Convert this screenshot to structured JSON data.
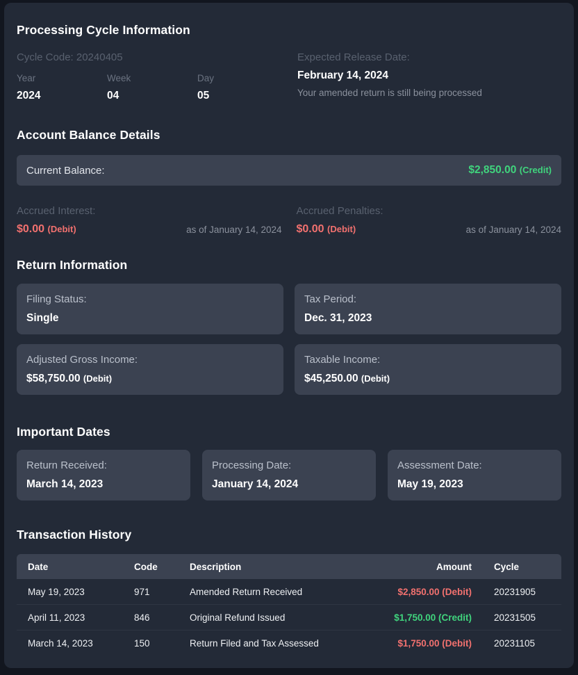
{
  "colors": {
    "outer_background": "#12161f",
    "panel_background": "#232a37",
    "card_background": "#3b4251",
    "credit_green": "#40d47d",
    "debit_red": "#f2716f"
  },
  "processing_cycle": {
    "title": "Processing Cycle Information",
    "cycle_code_line": "Cycle Code: 20240405",
    "fields": [
      {
        "label": "Year",
        "value": "2024"
      },
      {
        "label": "Week",
        "value": "04"
      },
      {
        "label": "Day",
        "value": "05"
      }
    ],
    "release": {
      "label": "Expected Release Date:",
      "value": "February 14, 2024",
      "note": "Your amended return is still being processed"
    }
  },
  "account_balance": {
    "title": "Account Balance Details",
    "current_balance": {
      "label": "Current Balance:",
      "amount": "$2,850.00",
      "suffix": "(Credit)",
      "type": "credit"
    },
    "accruals": [
      {
        "label": "Accrued Interest:",
        "amount": "$0.00",
        "suffix": "(Debit)",
        "type": "debit",
        "as_of": "as of January 14, 2024"
      },
      {
        "label": "Accrued Penalties:",
        "amount": "$0.00",
        "suffix": "(Debit)",
        "type": "debit",
        "as_of": "as of January 14, 2024"
      }
    ]
  },
  "return_information": {
    "title": "Return Information",
    "cards": [
      {
        "label": "Filing Status:",
        "value": "Single"
      },
      {
        "label": "Tax Period:",
        "value": "Dec. 31, 2023"
      },
      {
        "label": "Adjusted Gross Income:",
        "amount": "$58,750.00",
        "suffix": "(Debit)",
        "type": "debit"
      },
      {
        "label": "Taxable Income:",
        "amount": "$45,250.00",
        "suffix": "(Debit)",
        "type": "debit"
      }
    ]
  },
  "important_dates": {
    "title": "Important Dates",
    "cards": [
      {
        "label": "Return Received:",
        "value": "March 14, 2023"
      },
      {
        "label": "Processing Date:",
        "value": "January 14, 2024"
      },
      {
        "label": "Assessment Date:",
        "value": "May 19, 2023"
      }
    ]
  },
  "transaction_history": {
    "title": "Transaction History",
    "columns": [
      "Date",
      "Code",
      "Description",
      "Amount",
      "Cycle"
    ],
    "rows": [
      {
        "date": "May 19, 2023",
        "code": "971",
        "description": "Amended Return Received",
        "amount": "$2,850.00 (Debit)",
        "amount_type": "debit",
        "cycle": "20231905"
      },
      {
        "date": "April 11, 2023",
        "code": "846",
        "description": "Original Refund Issued",
        "amount": "$1,750.00 (Credit)",
        "amount_type": "credit",
        "cycle": "20231505"
      },
      {
        "date": "March 14, 2023",
        "code": "150",
        "description": "Return Filed and Tax Assessed",
        "amount": "$1,750.00 (Debit)",
        "amount_type": "debit",
        "cycle": "20231105"
      }
    ]
  }
}
